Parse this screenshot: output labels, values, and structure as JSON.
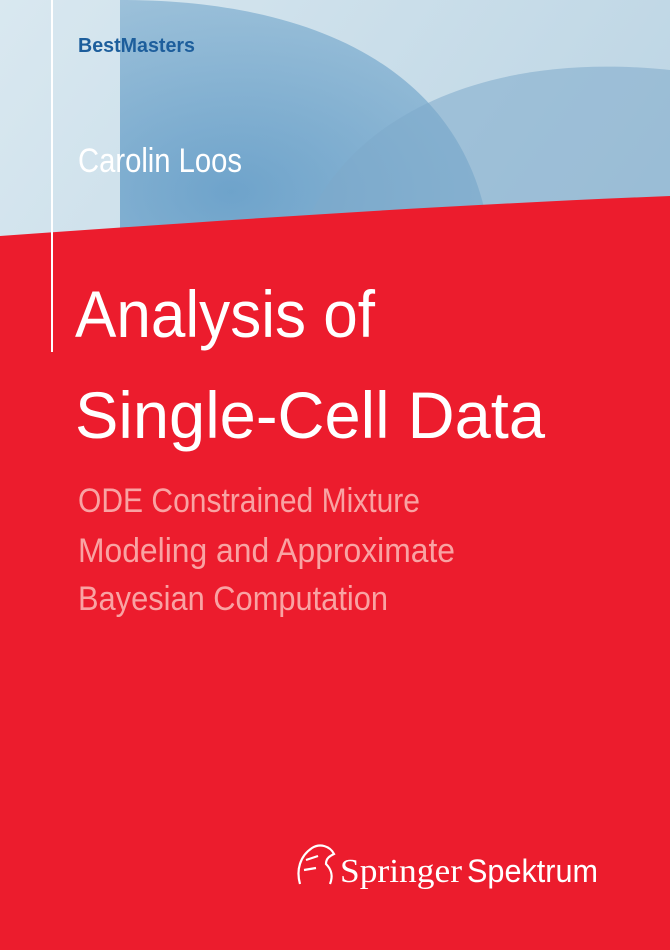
{
  "series_name": "BestMasters",
  "author": "Carolin Loos",
  "title": {
    "lines": [
      "Analysis of",
      "Single-Cell Data"
    ]
  },
  "subtitle": {
    "lines": [
      "ODE Constrained Mixture",
      "Modeling and Approximate",
      "Bayesian Computation"
    ]
  },
  "publisher": {
    "name": "Springer",
    "imprint": "Spektrum"
  }
}
